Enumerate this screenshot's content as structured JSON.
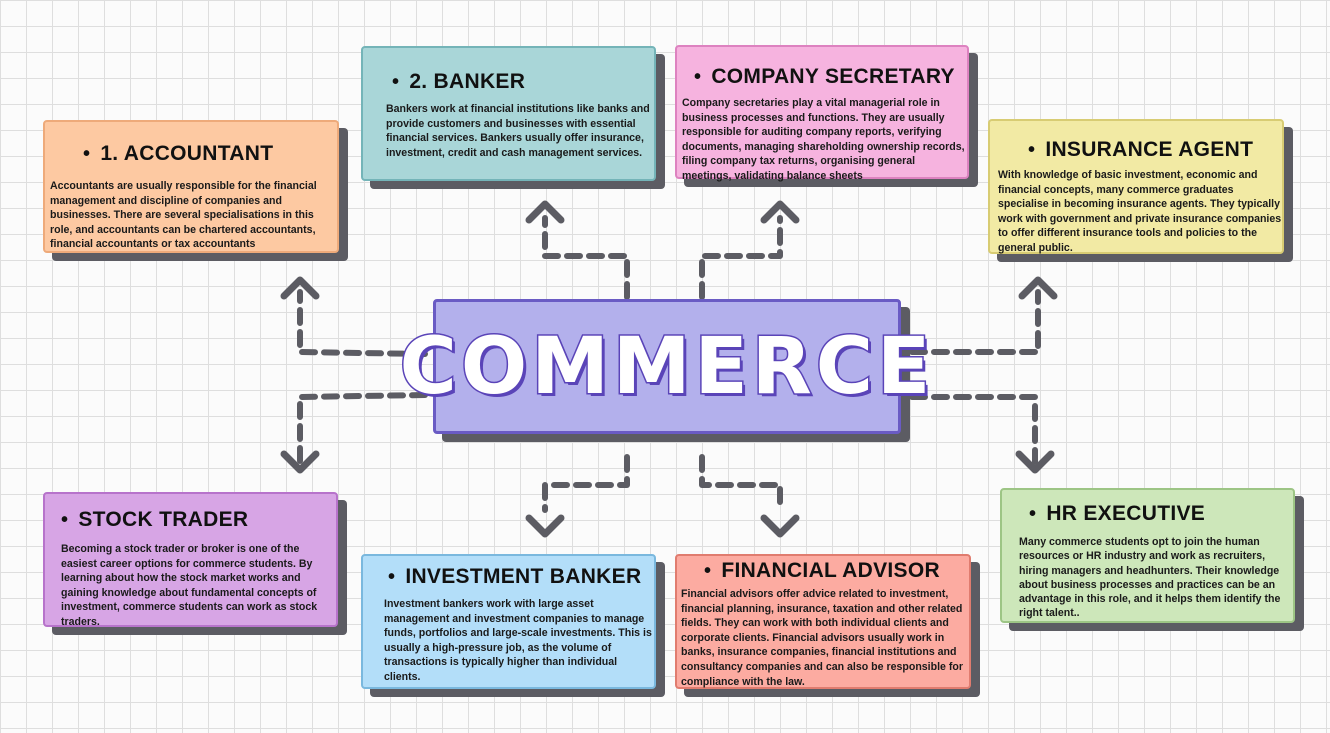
{
  "center": {
    "title": "COMMERCE"
  },
  "cards": {
    "accountant": {
      "title": "1. ACCOUNTANT",
      "text": "Accountants are usually responsible for the financial management and discipline of companies and businesses. There are several specialisations in this role, and accountants can be chartered accountants, financial accountants or tax accountants"
    },
    "banker": {
      "title": "2. BANKER",
      "text": "Bankers work at financial institutions like banks and provide customers and businesses with essential financial services. Bankers usually offer insurance, investment, credit and cash management services."
    },
    "secretary": {
      "title": "COMPANY SECRETARY",
      "text": "Company secretaries play a vital managerial role in business processes and functions. They are usually responsible for auditing company reports, verifying documents, managing shareholding ownership records, filing company tax returns, organising general meetings, validating balance sheets"
    },
    "insurance": {
      "title": "INSURANCE AGENT",
      "text": "With knowledge of basic investment, economic and financial concepts, many commerce graduates specialise in becoming insurance agents. They typically work with government and private insurance companies to offer different insurance tools and policies to the general public."
    },
    "stock": {
      "title": "STOCK TRADER",
      "text": "Becoming a stock trader or broker is one of the easiest career options for commerce students. By learning about how the stock market works and gaining knowledge about fundamental concepts of investment, commerce students can work as stock traders."
    },
    "ibanker": {
      "title": "INVESTMENT BANKER",
      "text": "Investment bankers work with large asset management and investment companies to manage funds, portfolios and large-scale investments. This is usually a high-pressure job, as the volume of transactions is typically higher than individual clients."
    },
    "advisor": {
      "title": "FINANCIAL ADVISOR",
      "text": "Financial advisors offer advice related to investment, financial planning, insurance, taxation and other related fields. They can work with both individual clients and corporate clients. Financial advisors usually work in banks, insurance companies, financial institutions and consultancy companies and can also be responsible for compliance with the law."
    },
    "hr": {
      "title": "HR EXECUTIVE",
      "text": "Many commerce students opt to join the human resources or HR industry and work as recruiters, hiring managers and headhunters. Their knowledge about business processes and practices can be an advantage in this role, and it helps them identify the right talent.."
    }
  },
  "colors": {
    "accountant": "#fdc9a2",
    "banker": "#a9d6d8",
    "secretary": "#f6b3df",
    "insurance": "#f2eaa4",
    "stock": "#d7a5e5",
    "ibanker": "#b3def9",
    "advisor": "#fcaba1",
    "hr": "#cde7ba",
    "center": "#b3b0ec",
    "arrow": "#5c5c63"
  }
}
